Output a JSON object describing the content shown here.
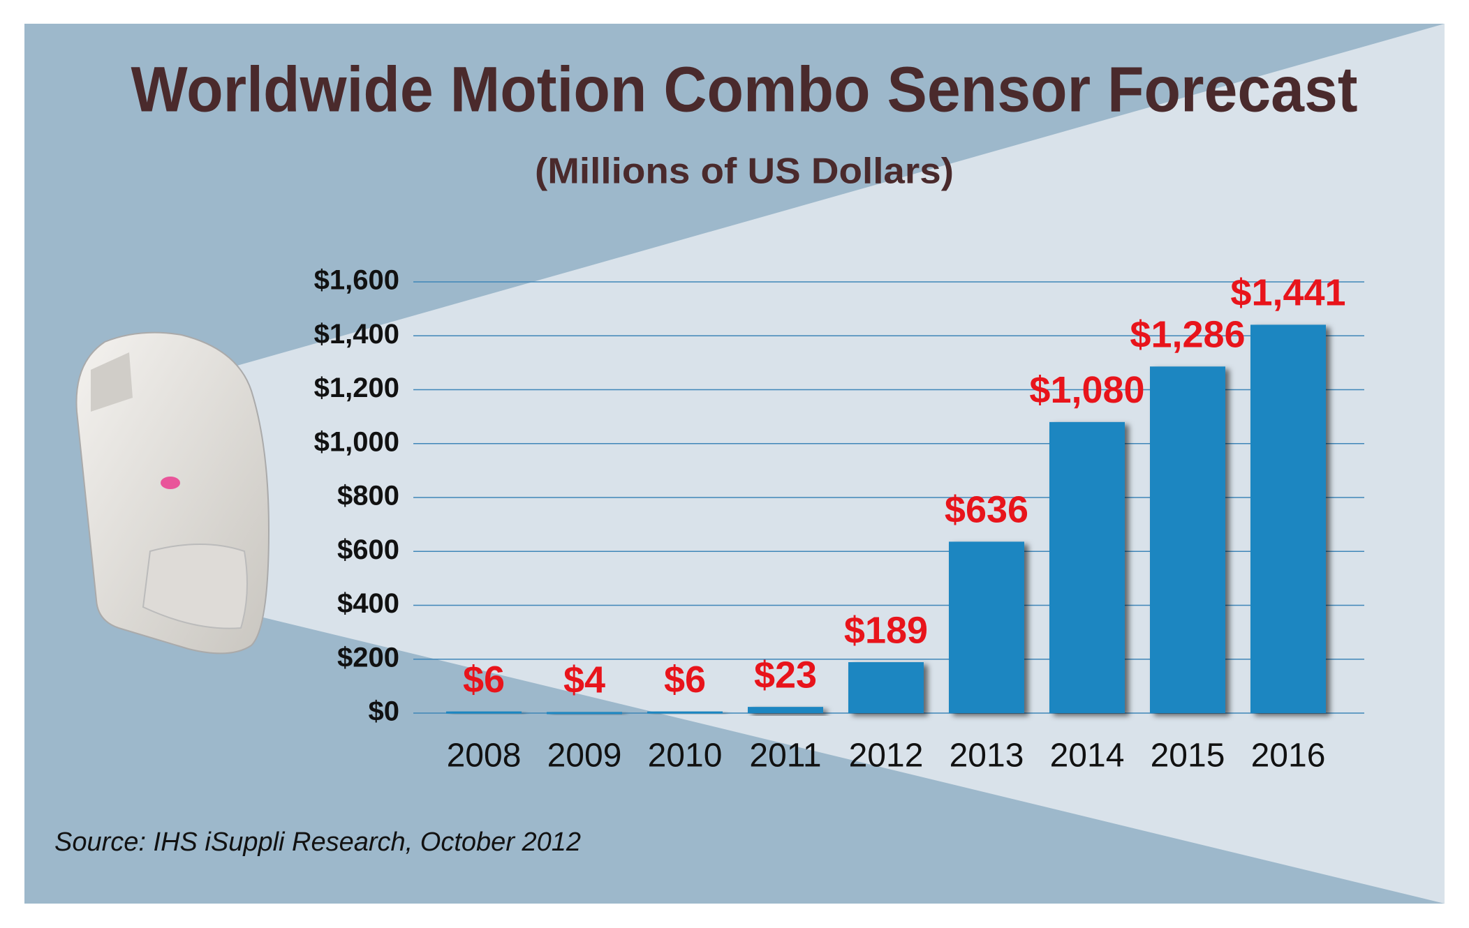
{
  "chart_data": {
    "type": "bar",
    "title": "Worldwide Motion Combo Sensor Forecast",
    "subtitle": "(Millions of US Dollars)",
    "source": "Source: IHS iSuppli Research, October 2012",
    "categories": [
      "2008",
      "2009",
      "2010",
      "2011",
      "2012",
      "2013",
      "2014",
      "2015",
      "2016"
    ],
    "values": [
      6,
      4,
      6,
      23,
      189,
      636,
      1080,
      1286,
      1441
    ],
    "value_labels": [
      "$6",
      "$4",
      "$6",
      "$23",
      "$189",
      "$636",
      "$1,080",
      "$1,286",
      "$1,441"
    ],
    "color": "#1f86c1",
    "ylim": [
      0,
      1600
    ],
    "yticks": [
      {
        "value": 0,
        "label": "$0"
      },
      {
        "value": 200,
        "label": "$200"
      },
      {
        "value": 400,
        "label": "$400"
      },
      {
        "value": 600,
        "label": "$600"
      },
      {
        "value": 800,
        "label": "$800"
      },
      {
        "value": 1000,
        "label": "$1,000"
      },
      {
        "value": 1200,
        "label": "$1,200"
      },
      {
        "value": 1400,
        "label": "$1,400"
      },
      {
        "value": 1600,
        "label": "$1,600"
      }
    ],
    "grid": true
  }
}
